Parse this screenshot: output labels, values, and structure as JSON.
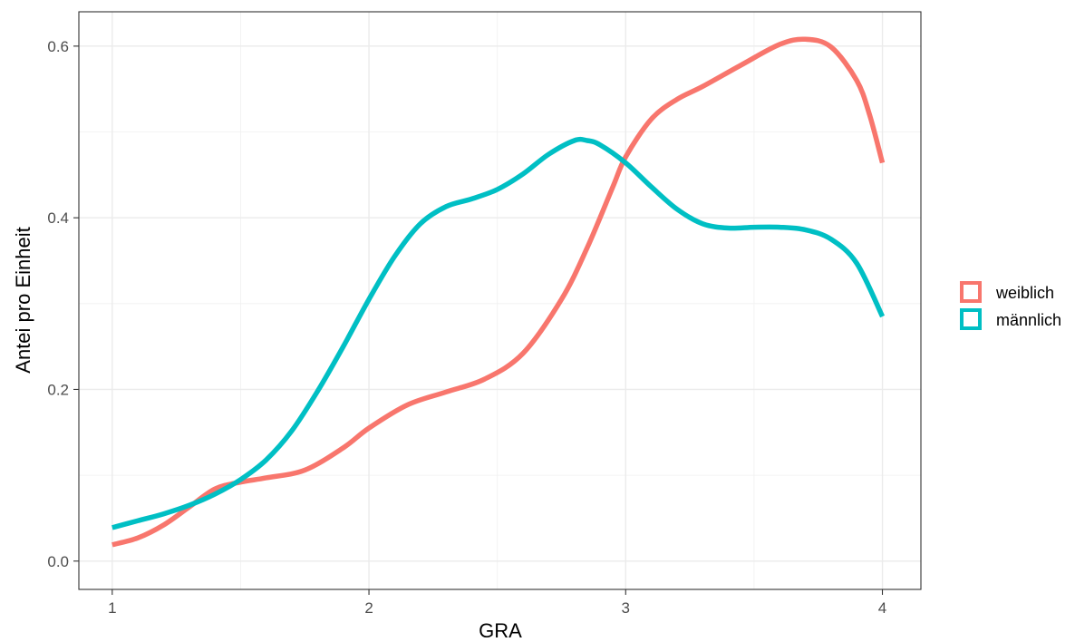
{
  "chart_data": {
    "type": "line",
    "title": "",
    "xlabel": "GRA",
    "ylabel": "Antei pro Einheit",
    "xlim": [
      0.87,
      4.15
    ],
    "ylim": [
      -0.033,
      0.64
    ],
    "x_ticks": [
      1,
      2,
      3,
      4
    ],
    "x_tick_labels": [
      "1",
      "2",
      "3",
      "4"
    ],
    "y_ticks": [
      0.0,
      0.2,
      0.4,
      0.6
    ],
    "y_tick_labels": [
      "0.0",
      "0.2",
      "0.4",
      "0.6"
    ],
    "grid": true,
    "legend_position": "right",
    "series": [
      {
        "name": "weiblich",
        "color": "#F8766D",
        "points": [
          [
            1.0,
            0.019
          ],
          [
            1.1,
            0.027
          ],
          [
            1.2,
            0.042
          ],
          [
            1.3,
            0.063
          ],
          [
            1.4,
            0.084
          ],
          [
            1.5,
            0.092
          ],
          [
            1.6,
            0.097
          ],
          [
            1.75,
            0.106
          ],
          [
            1.9,
            0.132
          ],
          [
            2.0,
            0.155
          ],
          [
            2.15,
            0.182
          ],
          [
            2.3,
            0.197
          ],
          [
            2.45,
            0.212
          ],
          [
            2.6,
            0.242
          ],
          [
            2.75,
            0.305
          ],
          [
            2.85,
            0.365
          ],
          [
            2.95,
            0.436
          ],
          [
            3.0,
            0.471
          ],
          [
            3.1,
            0.515
          ],
          [
            3.2,
            0.538
          ],
          [
            3.3,
            0.553
          ],
          [
            3.45,
            0.578
          ],
          [
            3.6,
            0.602
          ],
          [
            3.7,
            0.608
          ],
          [
            3.8,
            0.599
          ],
          [
            3.9,
            0.56
          ],
          [
            3.95,
            0.52
          ],
          [
            4.0,
            0.464
          ]
        ]
      },
      {
        "name": "männlich",
        "color": "#00BFC4",
        "points": [
          [
            1.0,
            0.039
          ],
          [
            1.1,
            0.047
          ],
          [
            1.2,
            0.055
          ],
          [
            1.3,
            0.065
          ],
          [
            1.4,
            0.078
          ],
          [
            1.5,
            0.095
          ],
          [
            1.6,
            0.118
          ],
          [
            1.7,
            0.152
          ],
          [
            1.8,
            0.198
          ],
          [
            1.9,
            0.25
          ],
          [
            2.0,
            0.305
          ],
          [
            2.1,
            0.355
          ],
          [
            2.2,
            0.393
          ],
          [
            2.3,
            0.413
          ],
          [
            2.4,
            0.422
          ],
          [
            2.5,
            0.433
          ],
          [
            2.6,
            0.451
          ],
          [
            2.7,
            0.474
          ],
          [
            2.8,
            0.49
          ],
          [
            2.85,
            0.49
          ],
          [
            2.9,
            0.485
          ],
          [
            3.0,
            0.464
          ],
          [
            3.1,
            0.436
          ],
          [
            3.2,
            0.41
          ],
          [
            3.3,
            0.393
          ],
          [
            3.4,
            0.388
          ],
          [
            3.5,
            0.389
          ],
          [
            3.6,
            0.389
          ],
          [
            3.7,
            0.386
          ],
          [
            3.8,
            0.375
          ],
          [
            3.9,
            0.347
          ],
          [
            4.0,
            0.285
          ]
        ]
      }
    ]
  }
}
